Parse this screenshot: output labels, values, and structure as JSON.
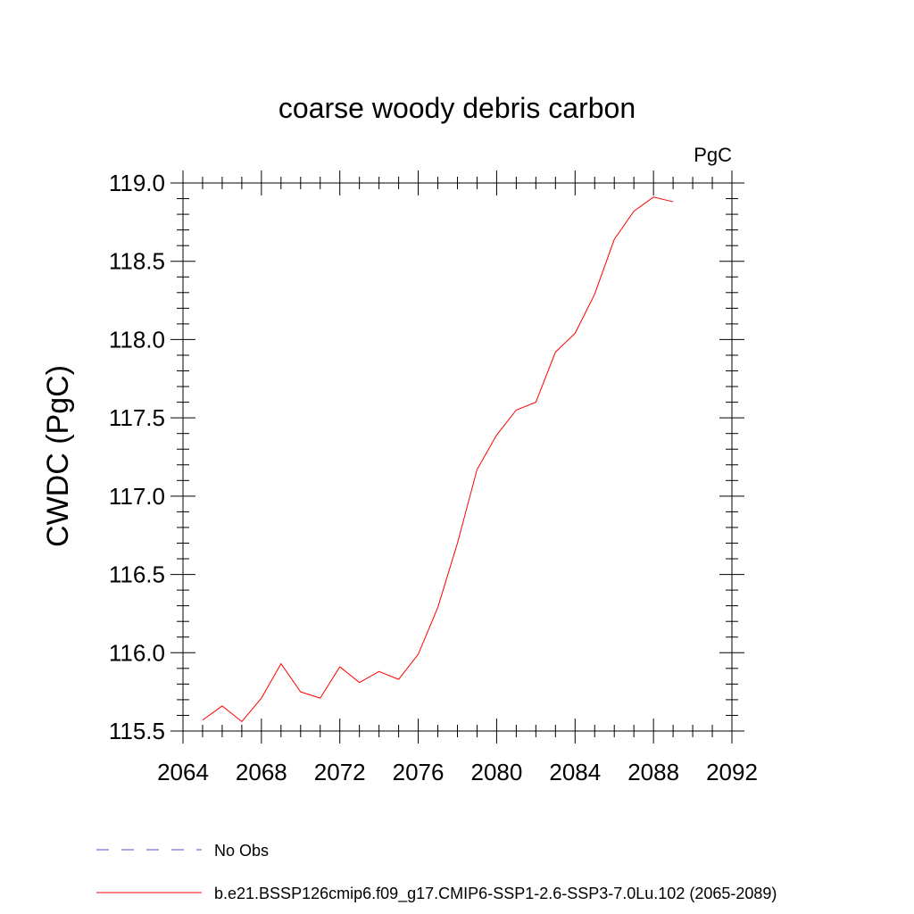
{
  "chart_data": {
    "type": "line",
    "title": "coarse woody debris carbon",
    "units": "PgC",
    "xlabel": "",
    "ylabel": "CWDC  (PgC)",
    "xlim": [
      2064,
      2092
    ],
    "ylim": [
      115.5,
      119.0
    ],
    "x_ticks": [
      2064,
      2068,
      2072,
      2076,
      2080,
      2084,
      2088,
      2092
    ],
    "x_tick_labels": [
      "2064",
      "2068",
      "2072",
      "2076",
      "2080",
      "2084",
      "2088",
      "2092"
    ],
    "y_ticks": [
      115.5,
      116.0,
      116.5,
      117.0,
      117.5,
      118.0,
      118.5,
      119.0
    ],
    "y_tick_labels": [
      "115.5",
      "116.0",
      "116.5",
      "117.0",
      "117.5",
      "118.0",
      "118.5",
      "119.0"
    ],
    "grid": false,
    "series": [
      {
        "name": "b.e21.BSSP126cmip6.f09_g17.CMIP6-SSP1-2.6-SSP3-7.0Lu.102 (2065-2089)",
        "color": "#ff0000",
        "style": "solid",
        "x": [
          2065,
          2066,
          2067,
          2068,
          2069,
          2070,
          2071,
          2072,
          2073,
          2074,
          2075,
          2076,
          2077,
          2078,
          2079,
          2080,
          2081,
          2082,
          2083,
          2084,
          2085,
          2086,
          2087,
          2088,
          2089
        ],
        "y": [
          115.57,
          115.66,
          115.56,
          115.71,
          115.93,
          115.75,
          115.71,
          115.91,
          115.81,
          115.88,
          115.83,
          115.99,
          116.29,
          116.7,
          117.17,
          117.39,
          117.55,
          117.6,
          117.92,
          118.04,
          118.29,
          118.64,
          118.82,
          118.91,
          118.88
        ]
      }
    ],
    "legend": [
      {
        "label": "No Obs",
        "color": "#5a4fcf",
        "style": "dashed"
      },
      {
        "label": "b.e21.BSSP126cmip6.f09_g17.CMIP6-SSP1-2.6-SSP3-7.0Lu.102 (2065-2089)",
        "color": "#ff0000",
        "style": "solid"
      }
    ],
    "legend_position": "bottom"
  }
}
